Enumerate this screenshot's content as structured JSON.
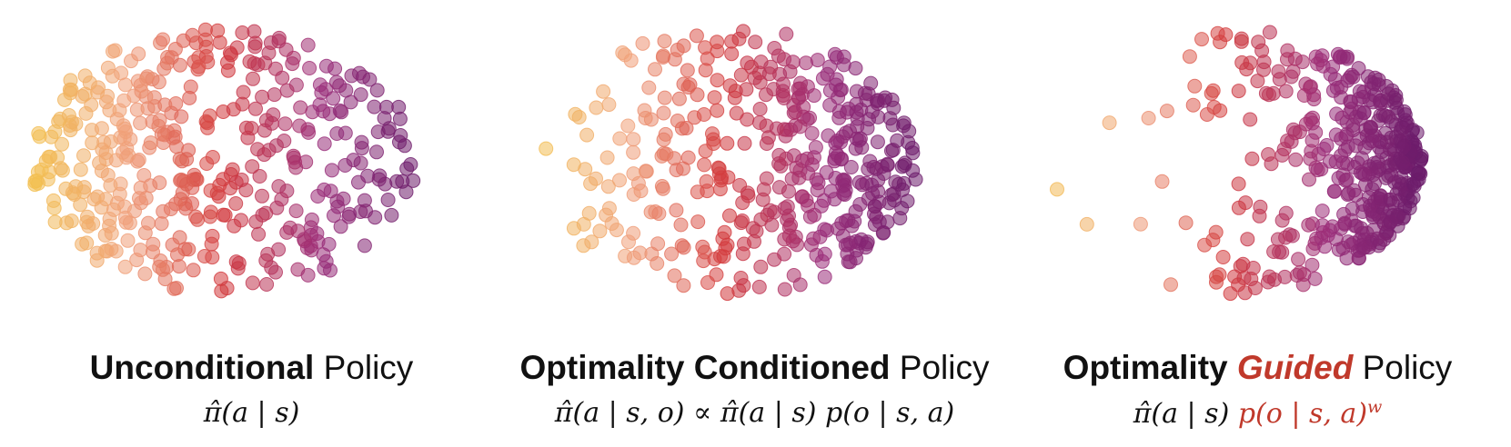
{
  "panels": [
    {
      "title_bold": "Unconditional",
      "title_rest": " Policy",
      "formula": "π̂(a | s)",
      "formula_extra": "",
      "formula_sup": ""
    },
    {
      "title_bold": "Optimality Conditioned",
      "title_rest": " Policy",
      "formula": "π̂(a | s, o) ∝ π̂(a | s) p(o | s, a)",
      "formula_extra": "",
      "formula_sup": ""
    },
    {
      "title_bold": "Optimality",
      "title_accent": "Guided",
      "title_rest": " Policy",
      "formula": "π̂(a | s) ",
      "formula_extra": "p(o | s, a)",
      "formula_sup": "w"
    }
  ],
  "colors": {
    "accent": "#c0392b",
    "gradient": [
      "#f2c14e",
      "#f0a07a",
      "#d2393c",
      "#9b2e7a",
      "#6a1b6a"
    ]
  }
}
